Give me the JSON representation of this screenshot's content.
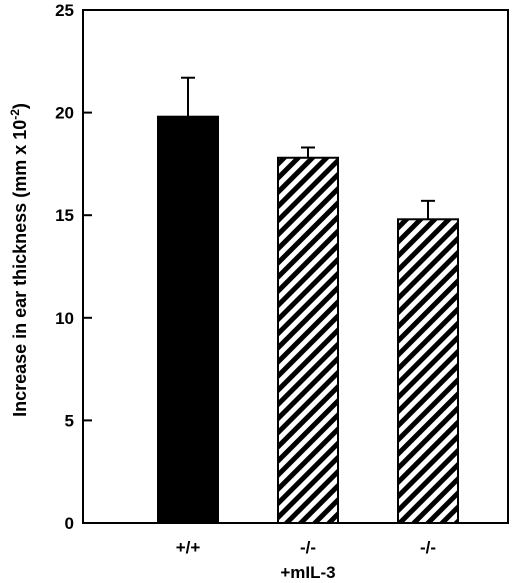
{
  "chart_data": {
    "type": "bar",
    "title": "",
    "xlabel": "",
    "ylabel": {
      "text": "Increase in ear thickness (mm x 10",
      "superscript": "-2",
      "close": ")"
    },
    "ylim": [
      0,
      25
    ],
    "yticks": [
      "0",
      "5",
      "10",
      "15",
      "20",
      "25"
    ],
    "categories": [
      {
        "line1": "+/+",
        "line2": ""
      },
      {
        "line1": "-/-",
        "line2": "+mIL-3"
      },
      {
        "line1": "-/-",
        "line2": ""
      }
    ],
    "values": [
      19.8,
      17.8,
      14.8
    ],
    "errors": [
      1.9,
      0.5,
      0.9
    ],
    "fills": [
      "solid",
      "hatched",
      "hatched"
    ],
    "colors": {
      "bar": "#000000",
      "hatch_bg": "#ffffff",
      "axis": "#000000"
    },
    "grid": false,
    "legend": "none"
  }
}
